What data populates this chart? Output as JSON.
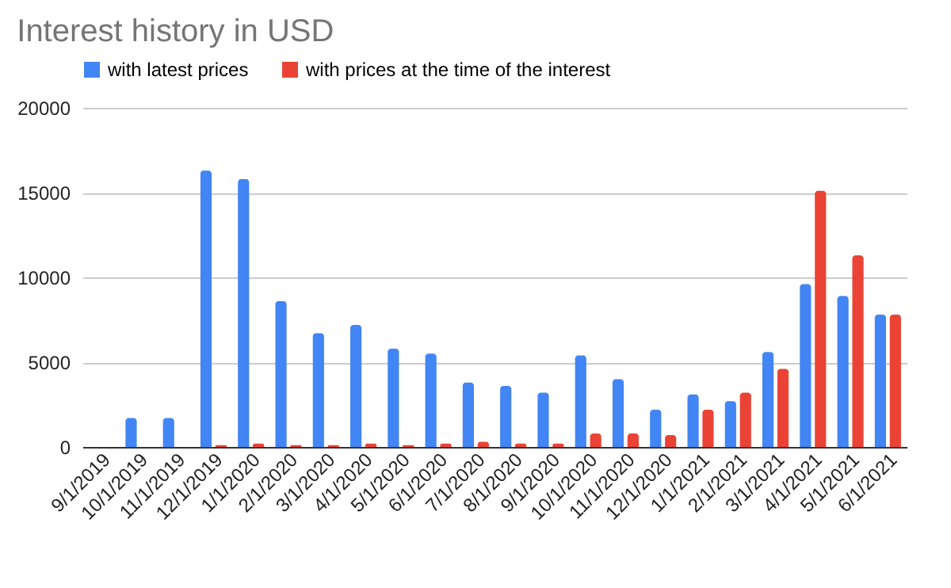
{
  "chart_data": {
    "type": "bar",
    "title": "Interest history in USD",
    "categories": [
      "9/1/2019",
      "10/1/2019",
      "11/1/2019",
      "12/1/2019",
      "1/1/2020",
      "2/1/2020",
      "3/1/2020",
      "4/1/2020",
      "5/1/2020",
      "6/1/2020",
      "7/1/2020",
      "8/1/2020",
      "9/1/2020",
      "10/1/2020",
      "11/1/2020",
      "12/1/2020",
      "1/1/2021",
      "2/1/2021",
      "3/1/2021",
      "4/1/2021",
      "5/1/2021",
      "6/1/2021"
    ],
    "series": [
      {
        "name": "with latest prices",
        "color": "#4285f4",
        "values": [
          0,
          1700,
          1700,
          16300,
          15800,
          8600,
          6700,
          7200,
          5800,
          5500,
          3800,
          3600,
          3200,
          5400,
          4000,
          2200,
          3100,
          2700,
          5600,
          9600,
          8900,
          7800
        ]
      },
      {
        "name": "with prices at the time of the interest",
        "color": "#ea4335",
        "values": [
          0,
          0,
          0,
          100,
          200,
          100,
          100,
          200,
          100,
          200,
          300,
          200,
          200,
          800,
          800,
          700,
          2200,
          3200,
          4600,
          15100,
          11300,
          7800
        ]
      }
    ],
    "ylim": [
      0,
      20000
    ],
    "yticks": [
      0,
      5000,
      10000,
      15000,
      20000
    ],
    "grid": "y",
    "legend": "top"
  }
}
